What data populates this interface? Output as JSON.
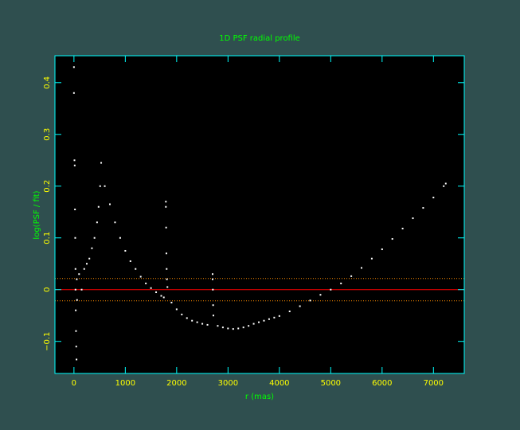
{
  "chart_data": {
    "type": "scatter",
    "title": "1D PSF radial profile",
    "xlabel": "r (mas)",
    "ylabel": "log(PSF / fit)",
    "xlim": [
      -370,
      7600
    ],
    "ylim": [
      -0.162,
      0.452
    ],
    "xticks": [
      0,
      1000,
      2000,
      3000,
      4000,
      5000,
      6000,
      7000
    ],
    "yticks": [
      {
        "value": -0.1,
        "label": "−0.1"
      },
      0,
      0.1,
      0.2,
      0.3,
      0.4
    ],
    "color": "#ffffff",
    "axis_color": "#00ffff",
    "hlines": [
      {
        "value": 0,
        "color": "#ff0000",
        "style": "solid"
      },
      {
        "value": 0.0215,
        "color": "#ff8c00",
        "style": "dotted"
      },
      {
        "value": -0.0215,
        "color": "#ff8c00",
        "style": "dotted"
      }
    ],
    "x": [
      0,
      0,
      10,
      15,
      20,
      25,
      30,
      30,
      35,
      40,
      45,
      50,
      55,
      60,
      100,
      150,
      200,
      250,
      300,
      350,
      400,
      450,
      480,
      510,
      530,
      600,
      700,
      800,
      900,
      1000,
      1100,
      1200,
      1300,
      1400,
      1500,
      1600,
      1700,
      1750,
      1790,
      1790,
      1795,
      1800,
      1805,
      1810,
      1820,
      1900,
      2000,
      2100,
      2200,
      2300,
      2400,
      2500,
      2600,
      2700,
      2700,
      2705,
      2710,
      2715,
      2800,
      2900,
      3000,
      3100,
      3200,
      3300,
      3400,
      3500,
      3600,
      3700,
      3800,
      3900,
      4000,
      4200,
      4400,
      4600,
      4800,
      5000,
      5200,
      5400,
      5600,
      5800,
      6000,
      6200,
      6400,
      6600,
      6800,
      7000,
      7200,
      7240
    ],
    "values": [
      0.43,
      0.38,
      0.25,
      0.24,
      0.155,
      0.1,
      0.04,
      0.0,
      -0.04,
      -0.08,
      -0.11,
      -0.135,
      0.02,
      -0.02,
      0.03,
      0.0,
      0.04,
      0.05,
      0.06,
      0.08,
      0.1,
      0.13,
      0.16,
      0.2,
      0.245,
      0.2,
      0.165,
      0.13,
      0.1,
      0.075,
      0.055,
      0.04,
      0.025,
      0.012,
      0.003,
      -0.005,
      -0.012,
      -0.015,
      0.17,
      0.16,
      0.12,
      0.07,
      0.04,
      0.02,
      0.005,
      -0.025,
      -0.038,
      -0.048,
      -0.055,
      -0.06,
      -0.063,
      -0.066,
      -0.068,
      0.03,
      0.02,
      0.0,
      -0.03,
      -0.05,
      -0.07,
      -0.073,
      -0.075,
      -0.076,
      -0.075,
      -0.073,
      -0.07,
      -0.066,
      -0.063,
      -0.06,
      -0.057,
      -0.054,
      -0.051,
      -0.042,
      -0.032,
      -0.021,
      -0.01,
      0.0,
      0.012,
      0.026,
      0.042,
      0.06,
      0.078,
      0.098,
      0.118,
      0.138,
      0.158,
      0.178,
      0.2,
      0.205
    ]
  }
}
